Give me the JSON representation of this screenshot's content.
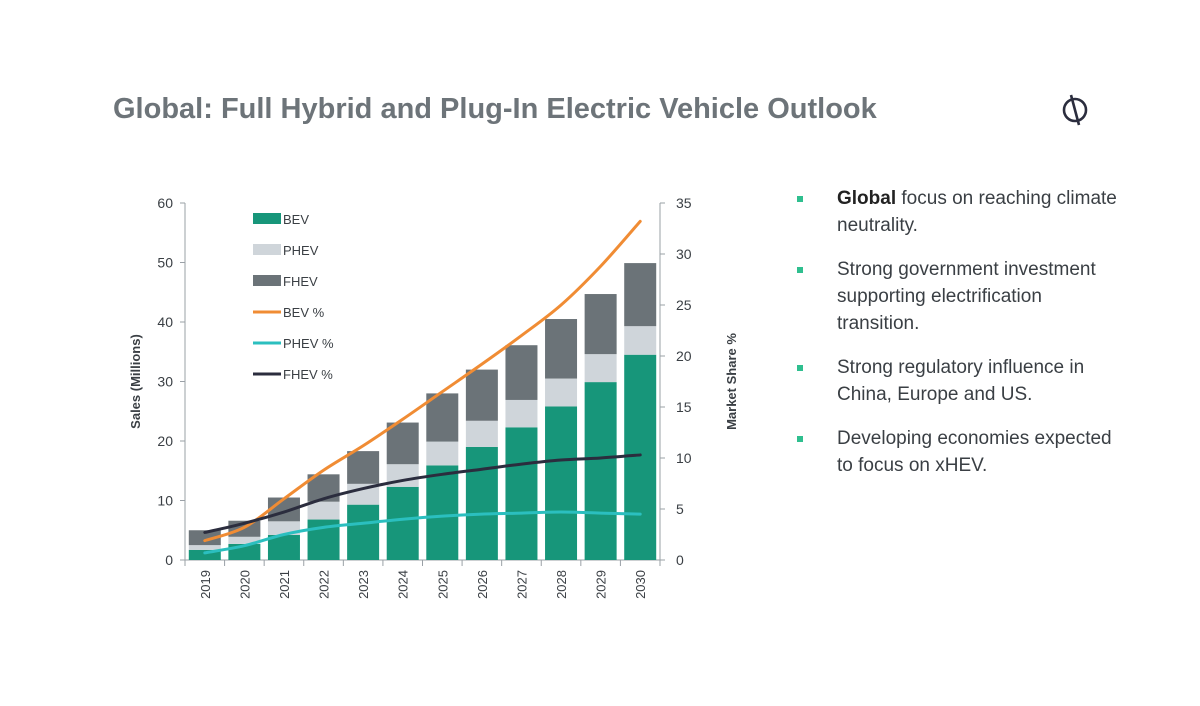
{
  "slide": {
    "title": "Global: Full Hybrid and Plug-In Electric Vehicle Outlook",
    "logo_icon": "circle-slash-logo-icon"
  },
  "bullets": [
    {
      "bold": "Global",
      "text": " focus on reaching climate neutrality."
    },
    {
      "bold": "",
      "text": "Strong government investment supporting electrification transition."
    },
    {
      "bold": "",
      "text": "Strong regulatory influence in China, Europe and US."
    },
    {
      "bold": "",
      "text": "Developing economies expected to focus on xHEV."
    }
  ],
  "chart_data": {
    "type": "bar",
    "stacked": true,
    "categories": [
      "2019",
      "2020",
      "2021",
      "2022",
      "2023",
      "2024",
      "2025",
      "2026",
      "2027",
      "2028",
      "2029",
      "2030"
    ],
    "series": [
      {
        "name": "BEV",
        "type": "bar",
        "axis": "left",
        "color": "#17967a",
        "values": [
          1.7,
          2.7,
          4.2,
          6.8,
          9.3,
          12.3,
          15.9,
          19.0,
          22.3,
          25.8,
          29.9,
          34.5
        ]
      },
      {
        "name": "PHEV",
        "type": "bar",
        "axis": "left",
        "color": "#cfd5da",
        "values": [
          0.8,
          1.2,
          2.3,
          3.0,
          3.5,
          3.8,
          4.0,
          4.4,
          4.6,
          4.7,
          4.7,
          4.8
        ]
      },
      {
        "name": "FHEV",
        "type": "bar",
        "axis": "left",
        "color": "#6b7378",
        "values": [
          2.5,
          2.7,
          4.0,
          4.6,
          5.5,
          7.0,
          8.1,
          8.6,
          9.2,
          10.0,
          10.1,
          10.6
        ]
      },
      {
        "name": "BEV %",
        "type": "line",
        "axis": "right",
        "color": "#f08c34",
        "values": [
          1.9,
          3.2,
          6.0,
          8.8,
          11.2,
          13.8,
          16.5,
          19.2,
          22.0,
          25.0,
          28.8,
          33.2
        ]
      },
      {
        "name": "PHEV %",
        "type": "line",
        "axis": "right",
        "color": "#2bbfbf",
        "values": [
          0.7,
          1.4,
          2.5,
          3.2,
          3.6,
          4.0,
          4.3,
          4.5,
          4.6,
          4.7,
          4.6,
          4.5
        ]
      },
      {
        "name": "FHEV %",
        "type": "line",
        "axis": "right",
        "color": "#2b2d3e",
        "values": [
          2.7,
          3.6,
          4.7,
          6.0,
          7.0,
          7.8,
          8.4,
          8.9,
          9.4,
          9.8,
          10.0,
          10.3
        ]
      }
    ],
    "ylabel": "Sales (Millions)",
    "ylim": [
      0,
      60
    ],
    "yticks": [
      "0",
      "10",
      "20",
      "30",
      "40",
      "50",
      "60"
    ],
    "y2label": "Market Share %",
    "y2lim": [
      0,
      35
    ],
    "y2ticks": [
      "0",
      "5",
      "10",
      "15",
      "20",
      "25",
      "30",
      "35"
    ],
    "legend_position": "top-left",
    "grid": false
  }
}
